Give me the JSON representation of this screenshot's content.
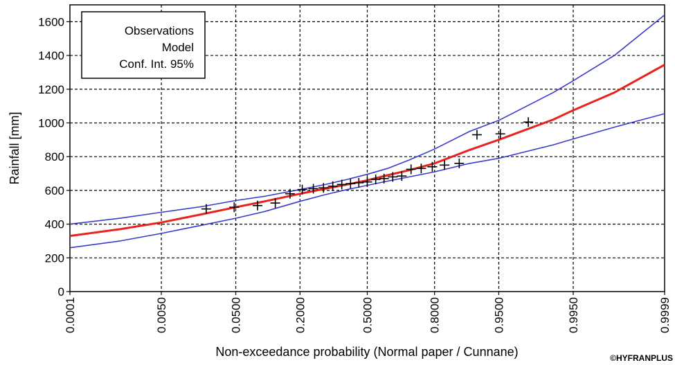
{
  "chart_data": {
    "type": "line",
    "xlabel": "Non-exceedance probability (Normal paper / Cunnane)",
    "ylabel": "Rainfall  [mm]",
    "x_scale": "normal-probability",
    "x_ticks": [
      "0.0001",
      "0.0050",
      "0.0500",
      "0.2000",
      "0.5000",
      "0.8000",
      "0.9500",
      "0.9950",
      "0.9999"
    ],
    "y_ticks": [
      "0",
      "200",
      "400",
      "600",
      "800",
      "1000",
      "1200",
      "1400",
      "1600"
    ],
    "ylim": [
      0,
      1700
    ],
    "grid": true,
    "legend_position": "top-left",
    "legend": [
      "Observations",
      "Model",
      "Conf. Int. 95%"
    ],
    "credit": "©HYFRANPLUS",
    "colors": {
      "model": "#e8231d",
      "confidence": "#3a3acc",
      "observations": "#000000"
    },
    "observations": {
      "x": [
        0.022,
        0.048,
        0.085,
        0.125,
        0.167,
        0.208,
        0.25,
        0.292,
        0.333,
        0.375,
        0.417,
        0.458,
        0.5,
        0.542,
        0.583,
        0.625,
        0.667,
        0.708,
        0.75,
        0.792,
        0.833,
        0.875,
        0.915,
        0.952,
        0.978
      ],
      "y": [
        490,
        500,
        510,
        525,
        580,
        605,
        610,
        615,
        625,
        635,
        640,
        645,
        650,
        665,
        670,
        680,
        685,
        725,
        730,
        740,
        750,
        760,
        930,
        935,
        1005
      ]
    },
    "series": [
      {
        "name": "Model",
        "x": [
          0.0001,
          0.001,
          0.005,
          0.02,
          0.05,
          0.1,
          0.2,
          0.3,
          0.4,
          0.5,
          0.6,
          0.7,
          0.8,
          0.9,
          0.95,
          0.99,
          0.995,
          0.999,
          0.9999
        ],
        "y": [
          330,
          370,
          410,
          460,
          500,
          535,
          580,
          610,
          635,
          660,
          690,
          720,
          760,
          840,
          900,
          1020,
          1075,
          1180,
          1345
        ]
      },
      {
        "name": "Upper 95%",
        "x": [
          0.0001,
          0.001,
          0.005,
          0.02,
          0.05,
          0.1,
          0.2,
          0.3,
          0.4,
          0.5,
          0.6,
          0.7,
          0.8,
          0.9,
          0.95,
          0.99,
          0.995,
          0.999,
          0.9999
        ],
        "y": [
          400,
          435,
          470,
          505,
          540,
          565,
          605,
          635,
          665,
          695,
          730,
          780,
          845,
          950,
          1015,
          1180,
          1250,
          1400,
          1640
        ]
      },
      {
        "name": "Lower 95%",
        "x": [
          0.0001,
          0.001,
          0.005,
          0.02,
          0.05,
          0.1,
          0.2,
          0.3,
          0.4,
          0.5,
          0.6,
          0.7,
          0.8,
          0.9,
          0.95,
          0.99,
          0.995,
          0.999,
          0.9999
        ],
        "y": [
          260,
          300,
          345,
          395,
          435,
          475,
          535,
          575,
          605,
          630,
          655,
          680,
          710,
          760,
          790,
          870,
          905,
          975,
          1055
        ]
      }
    ]
  }
}
